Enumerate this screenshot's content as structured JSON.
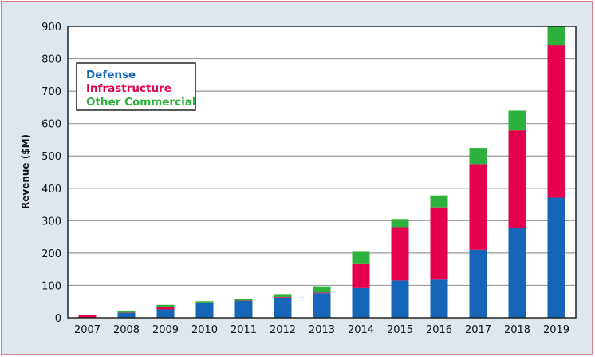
{
  "chart_data": {
    "type": "bar",
    "stacked": true,
    "title": "",
    "xlabel": "",
    "ylabel": "Revenue ($M)",
    "ylim": [
      0,
      900
    ],
    "yticks": [
      0,
      100,
      200,
      300,
      400,
      500,
      600,
      700,
      800,
      900
    ],
    "grid": true,
    "legend_placement": "top-left",
    "categories": [
      "2007",
      "2008",
      "2009",
      "2010",
      "2011",
      "2012",
      "2013",
      "2014",
      "2015",
      "2016",
      "2017",
      "2018",
      "2019"
    ],
    "series": [
      {
        "name": "Defense",
        "color": "#1565b8",
        "values": [
          1,
          15,
          26,
          46,
          52,
          62,
          76,
          94,
          115,
          120,
          210,
          278,
          371
        ]
      },
      {
        "name": "Infrastructure",
        "color": "#e5004f",
        "values": [
          7,
          1,
          8,
          1,
          1,
          2,
          2,
          74,
          165,
          221,
          265,
          301,
          472
        ]
      },
      {
        "name": "Other Commercial",
        "color": "#2eb03c",
        "values": [
          0,
          4,
          6,
          4,
          4,
          9,
          19,
          38,
          25,
          37,
          50,
          61,
          57
        ]
      }
    ]
  }
}
